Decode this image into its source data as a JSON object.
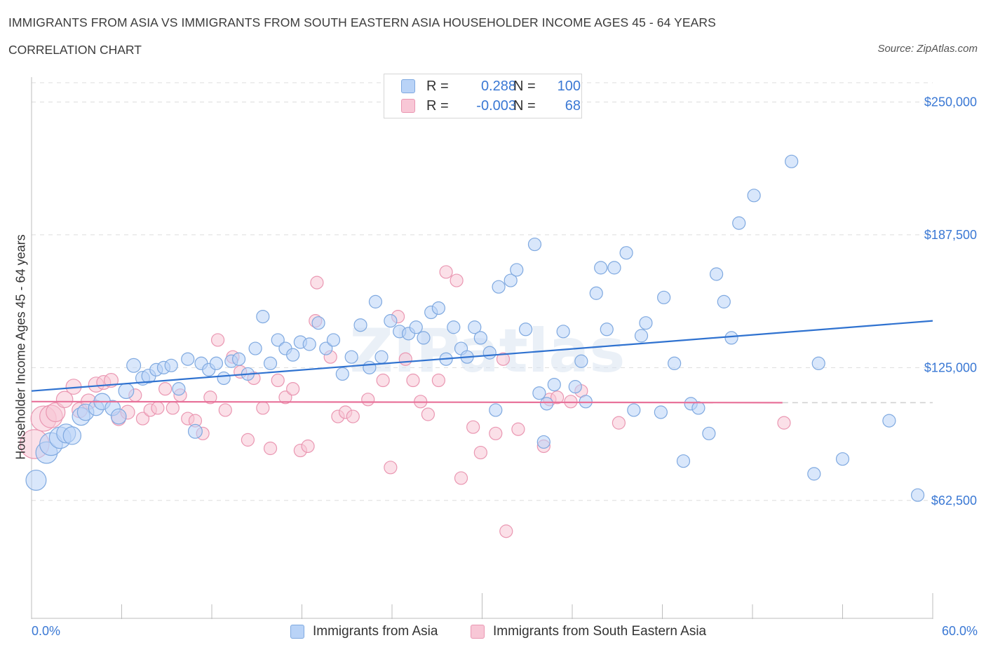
{
  "header": {
    "title": "IMMIGRANTS FROM ASIA VS IMMIGRANTS FROM SOUTH EASTERN ASIA HOUSEHOLDER INCOME AGES 45 - 64 YEARS",
    "subtitle": "CORRELATION CHART",
    "source": "Source: ZipAtlas.com"
  },
  "legend": {
    "series1": {
      "r_label": "R =",
      "r_value": "0.288",
      "n_label": "N =",
      "n_value": "100"
    },
    "series2": {
      "r_label": "R =",
      "r_value": "-0.003",
      "n_label": "N =",
      "n_value": "68"
    }
  },
  "colors": {
    "blue_fill": "#b9d3f7",
    "blue_stroke": "#7fa9e0",
    "blue_line": "#2f72d0",
    "pink_fill": "#f8c7d6",
    "pink_stroke": "#ea97b2",
    "pink_line": "#e8729a",
    "axis_text": "#3a78d4",
    "grid": "#dddddd"
  },
  "chart_data": {
    "type": "scatter",
    "title": "IMMIGRANTS FROM ASIA VS IMMIGRANTS FROM SOUTH EASTERN ASIA HOUSEHOLDER INCOME AGES 45 - 64 YEARS",
    "xlabel": "",
    "ylabel": "Householder Income Ages 45 - 64 years",
    "xlim": [
      0,
      60
    ],
    "ylim": [
      7000,
      265000
    ],
    "x_tick_labels": [
      "0.0%",
      "60.0%"
    ],
    "y_ticks": [
      {
        "value": 62500,
        "label": "$62,500"
      },
      {
        "value": 125000,
        "label": "$125,000"
      },
      {
        "value": 187500,
        "label": "$187,500"
      },
      {
        "value": 250000,
        "label": "$250,000"
      }
    ],
    "watermark": "ZIPatlas",
    "series": [
      {
        "name": "Immigrants from Asia",
        "color": "#b9d3f7",
        "trend": {
          "x": [
            0,
            60
          ],
          "y": [
            114000,
            147000
          ]
        },
        "points": [
          [
            0.3,
            72000,
            1.6
          ],
          [
            1.0,
            85000,
            1.7
          ],
          [
            1.3,
            89000,
            1.8
          ],
          [
            1.9,
            92000,
            1.7
          ],
          [
            2.3,
            94000,
            1.5
          ],
          [
            2.7,
            93000,
            1.4
          ],
          [
            3.3,
            102000,
            1.4
          ],
          [
            3.6,
            104000,
            1.3
          ],
          [
            4.3,
            106000,
            1.2
          ],
          [
            4.7,
            109000,
            1.3
          ],
          [
            5.4,
            106000,
            1.2
          ],
          [
            5.8,
            102000,
            1.2
          ],
          [
            6.3,
            114000,
            1.2
          ],
          [
            6.8,
            126000,
            1.1
          ],
          [
            7.4,
            120000,
            1.1
          ],
          [
            7.8,
            121000,
            1.1
          ],
          [
            8.3,
            124000,
            1.0
          ],
          [
            8.8,
            125000,
            1.0
          ],
          [
            9.3,
            126000,
            1.0
          ],
          [
            9.8,
            115000,
            1.0
          ],
          [
            10.4,
            129000,
            1.0
          ],
          [
            11.3,
            127000,
            1.0
          ],
          [
            11.8,
            124000,
            1.0
          ],
          [
            12.3,
            127000,
            1.0
          ],
          [
            10.9,
            95000,
            1.1
          ],
          [
            12.8,
            120000,
            1.0
          ],
          [
            13.3,
            128000,
            1.0
          ],
          [
            13.8,
            129000,
            1.0
          ],
          [
            14.4,
            122000,
            1.0
          ],
          [
            14.9,
            134000,
            1.0
          ],
          [
            15.4,
            149000,
            1.0
          ],
          [
            15.9,
            127000,
            1.0
          ],
          [
            16.4,
            138000,
            1.0
          ],
          [
            16.9,
            134000,
            1.0
          ],
          [
            17.4,
            131000,
            1.0
          ],
          [
            17.9,
            137000,
            1.0
          ],
          [
            18.5,
            136000,
            1.0
          ],
          [
            19.1,
            146000,
            1.0
          ],
          [
            19.6,
            134000,
            1.0
          ],
          [
            20.1,
            138000,
            1.0
          ],
          [
            20.7,
            122000,
            1.0
          ],
          [
            21.3,
            130000,
            1.0
          ],
          [
            21.9,
            145000,
            1.0
          ],
          [
            22.5,
            125000,
            1.0
          ],
          [
            22.9,
            156000,
            1.0
          ],
          [
            23.3,
            130000,
            1.0
          ],
          [
            23.9,
            147000,
            1.0
          ],
          [
            24.5,
            142000,
            1.0
          ],
          [
            25.1,
            141000,
            1.0
          ],
          [
            25.6,
            144000,
            1.0
          ],
          [
            26.1,
            139000,
            1.0
          ],
          [
            26.6,
            151000,
            1.0
          ],
          [
            27.1,
            153000,
            1.0
          ],
          [
            27.6,
            129000,
            1.0
          ],
          [
            28.1,
            144000,
            1.0
          ],
          [
            28.6,
            134000,
            1.0
          ],
          [
            29.0,
            130000,
            1.0
          ],
          [
            29.5,
            144000,
            1.0
          ],
          [
            29.9,
            139000,
            1.0
          ],
          [
            30.5,
            132000,
            1.0
          ],
          [
            30.9,
            105000,
            1.0
          ],
          [
            31.1,
            163000,
            1.0
          ],
          [
            31.9,
            166000,
            1.0
          ],
          [
            32.3,
            171000,
            1.0
          ],
          [
            32.9,
            143000,
            1.0
          ],
          [
            33.5,
            183000,
            1.0
          ],
          [
            33.8,
            113000,
            1.0
          ],
          [
            34.3,
            108000,
            1.0
          ],
          [
            34.8,
            117000,
            1.0
          ],
          [
            35.4,
            142000,
            1.0
          ],
          [
            36.2,
            116000,
            1.0
          ],
          [
            36.6,
            128000,
            1.0
          ],
          [
            36.9,
            109000,
            1.0
          ],
          [
            37.6,
            160000,
            1.0
          ],
          [
            37.9,
            172000,
            1.0
          ],
          [
            38.3,
            143000,
            1.0
          ],
          [
            38.8,
            172000,
            1.0
          ],
          [
            39.6,
            179000,
            1.0
          ],
          [
            40.1,
            105000,
            1.0
          ],
          [
            40.6,
            140000,
            1.0
          ],
          [
            40.9,
            146000,
            1.0
          ],
          [
            41.9,
            104000,
            1.0
          ],
          [
            42.1,
            158000,
            1.0
          ],
          [
            42.8,
            127000,
            1.0
          ],
          [
            43.4,
            81000,
            1.0
          ],
          [
            43.9,
            108000,
            1.0
          ],
          [
            44.4,
            106000,
            1.0
          ],
          [
            45.1,
            94000,
            1.0
          ],
          [
            45.6,
            169000,
            1.0
          ],
          [
            46.1,
            156000,
            1.0
          ],
          [
            46.6,
            139000,
            1.0
          ],
          [
            47.1,
            193000,
            1.0
          ],
          [
            48.1,
            206000,
            1.0
          ],
          [
            50.6,
            222000,
            1.0
          ],
          [
            52.1,
            75000,
            1.0
          ],
          [
            52.4,
            127000,
            1.0
          ],
          [
            54.0,
            82000,
            1.0
          ],
          [
            57.1,
            100000,
            1.0
          ],
          [
            59.0,
            65000,
            1.0
          ],
          [
            34.1,
            90000,
            1.0
          ]
        ]
      },
      {
        "name": "Immigrants from South Eastern Asia",
        "color": "#f8c7d6",
        "trend": {
          "x": [
            0,
            50
          ],
          "y": [
            109000,
            108500
          ]
        },
        "points": [
          [
            0.2,
            89000,
            2.3
          ],
          [
            0.8,
            101000,
            2.0
          ],
          [
            1.3,
            102000,
            1.8
          ],
          [
            1.6,
            104000,
            1.5
          ],
          [
            2.2,
            110000,
            1.3
          ],
          [
            2.8,
            116000,
            1.2
          ],
          [
            3.2,
            105000,
            1.2
          ],
          [
            3.8,
            109000,
            1.2
          ],
          [
            4.3,
            117000,
            1.2
          ],
          [
            4.8,
            118000,
            1.1
          ],
          [
            5.3,
            119000,
            1.1
          ],
          [
            5.8,
            101000,
            1.1
          ],
          [
            6.4,
            104000,
            1.1
          ],
          [
            6.9,
            112000,
            1.0
          ],
          [
            7.4,
            101000,
            1.0
          ],
          [
            7.9,
            105000,
            1.0
          ],
          [
            8.4,
            106000,
            1.0
          ],
          [
            8.9,
            115000,
            1.0
          ],
          [
            9.4,
            106000,
            1.0
          ],
          [
            9.9,
            112000,
            1.0
          ],
          [
            10.4,
            101000,
            1.0
          ],
          [
            10.9,
            100000,
            1.0
          ],
          [
            11.4,
            94000,
            1.0
          ],
          [
            11.9,
            111000,
            1.0
          ],
          [
            12.4,
            138000,
            1.0
          ],
          [
            12.9,
            105000,
            1.0
          ],
          [
            13.4,
            130000,
            1.0
          ],
          [
            13.9,
            123000,
            1.0
          ],
          [
            14.4,
            91000,
            1.0
          ],
          [
            14.8,
            120000,
            1.0
          ],
          [
            15.4,
            106000,
            1.0
          ],
          [
            15.9,
            87000,
            1.0
          ],
          [
            16.4,
            119000,
            1.0
          ],
          [
            16.9,
            111000,
            1.0
          ],
          [
            17.4,
            115000,
            1.0
          ],
          [
            17.9,
            86000,
            1.0
          ],
          [
            18.4,
            88000,
            1.0
          ],
          [
            18.9,
            147000,
            1.0
          ],
          [
            19.0,
            165000,
            1.0
          ],
          [
            19.9,
            130000,
            1.0
          ],
          [
            20.4,
            102000,
            1.0
          ],
          [
            20.9,
            104000,
            1.0
          ],
          [
            21.4,
            102000,
            1.0
          ],
          [
            22.4,
            110000,
            1.0
          ],
          [
            23.4,
            119000,
            1.0
          ],
          [
            23.9,
            78000,
            1.0
          ],
          [
            24.4,
            149000,
            1.0
          ],
          [
            24.9,
            129000,
            1.0
          ],
          [
            25.4,
            119000,
            1.0
          ],
          [
            25.9,
            109000,
            1.0
          ],
          [
            26.4,
            103000,
            1.0
          ],
          [
            27.1,
            119000,
            1.0
          ],
          [
            27.6,
            170000,
            1.0
          ],
          [
            28.3,
            166000,
            1.0
          ],
          [
            28.6,
            73000,
            1.0
          ],
          [
            29.4,
            97000,
            1.0
          ],
          [
            29.9,
            85000,
            1.0
          ],
          [
            30.9,
            94000,
            1.0
          ],
          [
            31.4,
            129000,
            1.0
          ],
          [
            32.4,
            96000,
            1.0
          ],
          [
            31.6,
            48000,
            1.0
          ],
          [
            34.1,
            88000,
            1.0
          ],
          [
            34.5,
            110000,
            1.0
          ],
          [
            35.0,
            111000,
            1.0
          ],
          [
            36.6,
            114000,
            1.0
          ],
          [
            35.9,
            109000,
            1.0
          ],
          [
            39.1,
            99000,
            1.0
          ],
          [
            50.1,
            99000,
            1.0
          ]
        ]
      }
    ]
  },
  "bottom_legend": {
    "item1": "Immigrants from Asia",
    "item2": "Immigrants from South Eastern Asia"
  }
}
